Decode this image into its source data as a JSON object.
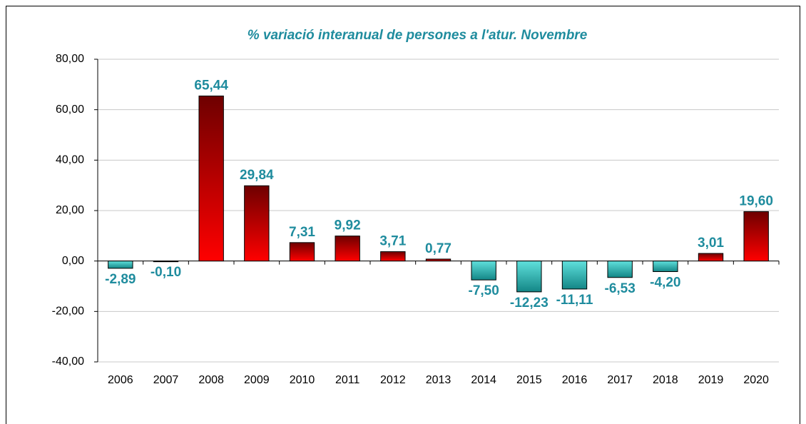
{
  "chart_data": {
    "type": "bar",
    "title": "% variació interanual de persones a l'atur. Novembre",
    "categories": [
      "2006",
      "2007",
      "2008",
      "2009",
      "2010",
      "2011",
      "2012",
      "2013",
      "2014",
      "2015",
      "2016",
      "2017",
      "2018",
      "2019",
      "2020"
    ],
    "values": [
      -2.89,
      -0.1,
      65.44,
      29.84,
      7.31,
      9.92,
      3.71,
      0.77,
      -7.5,
      -12.23,
      -11.11,
      -6.53,
      -4.2,
      3.01,
      19.6
    ],
    "value_labels": [
      "-2,89",
      "-0,10",
      "65,44",
      "29,84",
      "7,31",
      "9,92",
      "3,71",
      "0,77",
      "-7,50",
      "-12,23",
      "-11,11",
      "-6,53",
      "-4,20",
      "3,01",
      "19,60"
    ],
    "positive_gradient": [
      "#6e0000",
      "#ff0000"
    ],
    "negative_gradient": [
      "#5fe0dc",
      "#138686"
    ],
    "ylim": [
      -40,
      80
    ],
    "yticks": [
      {
        "value": -40,
        "label": "-40,00"
      },
      {
        "value": -20,
        "label": "-20,00"
      },
      {
        "value": 0,
        "label": "0,00"
      },
      {
        "value": 20,
        "label": "20,00"
      },
      {
        "value": 40,
        "label": "40,00"
      },
      {
        "value": 60,
        "label": "60,00"
      },
      {
        "value": 80,
        "label": "80,00"
      }
    ],
    "grid": true
  }
}
